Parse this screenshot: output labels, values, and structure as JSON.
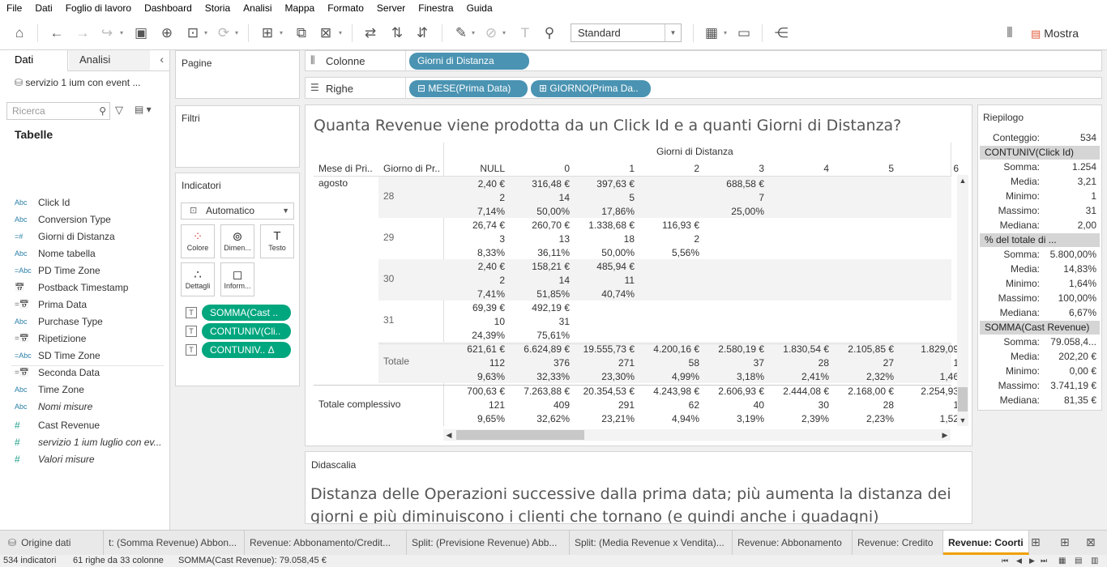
{
  "menu": [
    "File",
    "Dati",
    "Foglio di lavoro",
    "Dashboard",
    "Storia",
    "Analisi",
    "Mappa",
    "Formato",
    "Server",
    "Finestra",
    "Guida"
  ],
  "toolbar": {
    "fit_value": "Standard",
    "show_me": "Mostra"
  },
  "datapane": {
    "tab_data": "Dati",
    "tab_analysis": "Analisi",
    "datasource": "servizio 1 ium con event ...",
    "search_placeholder": "Ricerca",
    "tables_heading": "Tabelle",
    "fields": [
      {
        "icon": "Abc",
        "name": "Click Id",
        "italic": false,
        "measure": false
      },
      {
        "icon": "Abc",
        "name": "Conversion Type",
        "italic": false,
        "measure": false
      },
      {
        "icon": "=#",
        "name": "Giorni di Distanza",
        "italic": false,
        "measure": false
      },
      {
        "icon": "Abc",
        "name": "Nome tabella",
        "italic": false,
        "measure": false
      },
      {
        "icon": "=Abc",
        "name": "PD Time Zone",
        "italic": false,
        "measure": false
      },
      {
        "icon": "cal",
        "name": "Postback Timestamp",
        "italic": false,
        "measure": false
      },
      {
        "icon": "=cal",
        "name": "Prima Data",
        "italic": false,
        "measure": false
      },
      {
        "icon": "Abc",
        "name": "Purchase Type",
        "italic": false,
        "measure": false
      },
      {
        "icon": "=cal",
        "name": "Ripetizione",
        "italic": false,
        "measure": false
      },
      {
        "icon": "=Abc",
        "name": "SD Time Zone",
        "italic": false,
        "measure": false
      },
      {
        "icon": "=cal",
        "name": "Seconda Data",
        "italic": false,
        "measure": false
      },
      {
        "icon": "Abc",
        "name": "Time Zone",
        "italic": false,
        "measure": false
      },
      {
        "icon": "Abc",
        "name": "Nomi misure",
        "italic": true,
        "measure": false
      },
      {
        "icon": "#",
        "name": "Cast Revenue",
        "italic": false,
        "measure": true
      },
      {
        "icon": "#",
        "name": "servizio 1 ium luglio con ev...",
        "italic": true,
        "measure": true
      },
      {
        "icon": "#",
        "name": "Valori misure",
        "italic": true,
        "measure": true
      }
    ]
  },
  "cards": {
    "pages": "Pagine",
    "filters": "Filtri",
    "marks": "Indicatori",
    "mark_type": "Automatico",
    "mark_buttons": [
      "Colore",
      "Dimen...",
      "Testo",
      "Dettagli",
      "Inform..."
    ],
    "mark_pills": [
      "SOMMA(Cast ..",
      "CONTUNIV(Cli..",
      "CONTUNIV.. Δ"
    ]
  },
  "shelves": {
    "columns_label": "Colonne",
    "rows_label": "Righe",
    "columns_pill": "Giorni di Distanza",
    "rows_pills": [
      "⊟ MESE(Prima Data)",
      "⊞ GIORNO(Prima Da.."
    ]
  },
  "viz": {
    "title": "Quanta Revenue viene prodotta da un Click Id e a quanti Giorni di Distanza?",
    "col_group_header": "Giorni di Distanza",
    "row_header_1": "Mese di Pri..",
    "row_header_2": "Giorno di Pr..",
    "columns": [
      "NULL",
      "0",
      "1",
      "2",
      "3",
      "4",
      "5",
      "6"
    ],
    "month": "agosto",
    "rows": [
      {
        "label": "28",
        "cells": [
          [
            "2,40 €",
            "2",
            "7,14%"
          ],
          [
            "316,48 €",
            "14",
            "50,00%"
          ],
          [
            "397,63 €",
            "5",
            "17,86%"
          ],
          [
            "",
            "",
            ""
          ],
          [
            "688,58 €",
            "7",
            "25,00%"
          ],
          [
            "",
            "",
            ""
          ],
          [
            "",
            "",
            ""
          ],
          [
            "",
            "",
            ""
          ]
        ]
      },
      {
        "label": "29",
        "cells": [
          [
            "26,74 €",
            "3",
            "8,33%"
          ],
          [
            "260,70 €",
            "13",
            "36,11%"
          ],
          [
            "1.338,68 €",
            "18",
            "50,00%"
          ],
          [
            "116,93 €",
            "2",
            "5,56%"
          ],
          [
            "",
            "",
            ""
          ],
          [
            "",
            "",
            ""
          ],
          [
            "",
            "",
            ""
          ],
          [
            "",
            "",
            ""
          ]
        ]
      },
      {
        "label": "30",
        "cells": [
          [
            "2,40 €",
            "2",
            "7,41%"
          ],
          [
            "158,21 €",
            "14",
            "51,85%"
          ],
          [
            "485,94 €",
            "11",
            "40,74%"
          ],
          [
            "",
            "",
            ""
          ],
          [
            "",
            "",
            ""
          ],
          [
            "",
            "",
            ""
          ],
          [
            "",
            "",
            ""
          ],
          [
            "",
            "",
            ""
          ]
        ]
      },
      {
        "label": "31",
        "cells": [
          [
            "69,39 €",
            "10",
            "24,39%"
          ],
          [
            "492,19 €",
            "31",
            "75,61%"
          ],
          [
            "",
            "",
            ""
          ],
          [
            "",
            "",
            ""
          ],
          [
            "",
            "",
            ""
          ],
          [
            "",
            "",
            ""
          ],
          [
            "",
            "",
            ""
          ],
          [
            "",
            "",
            ""
          ]
        ]
      },
      {
        "label": "Totale",
        "cells": [
          [
            "621,61 €",
            "112",
            "9,63%"
          ],
          [
            "6.624,89 €",
            "376",
            "32,33%"
          ],
          [
            "19.555,73 €",
            "271",
            "23,30%"
          ],
          [
            "4.200,16 €",
            "58",
            "4,99%"
          ],
          [
            "2.580,19 €",
            "37",
            "3,18%"
          ],
          [
            "1.830,54 €",
            "28",
            "2,41%"
          ],
          [
            "2.105,85 €",
            "27",
            "2,32%"
          ],
          [
            "1.829,09",
            "1",
            "1,46"
          ]
        ]
      }
    ],
    "grand_total_label": "Totale complessivo",
    "grand_total": [
      [
        "700,63 €",
        "121",
        "9,65%"
      ],
      [
        "7.263,88 €",
        "409",
        "32,62%"
      ],
      [
        "20.354,53 €",
        "291",
        "23,21%"
      ],
      [
        "4.243,98 €",
        "62",
        "4,94%"
      ],
      [
        "2.606,93 €",
        "40",
        "3,19%"
      ],
      [
        "2.444,08 €",
        "30",
        "2,39%"
      ],
      [
        "2.168,00 €",
        "28",
        "2,23%"
      ],
      [
        "2.254,93",
        "1",
        "1,52"
      ]
    ]
  },
  "summary": {
    "title": "Riepilogo",
    "count_label": "Conteggio:",
    "count_value": "534",
    "sections": [
      {
        "head": "CONTUNIV(Click Id)",
        "rows": [
          [
            "Somma:",
            "1.254"
          ],
          [
            "Media:",
            "3,21"
          ],
          [
            "Minimo:",
            "1"
          ],
          [
            "Massimo:",
            "31"
          ],
          [
            "Mediana:",
            "2,00"
          ]
        ]
      },
      {
        "head": "% del totale di ...",
        "rows": [
          [
            "Somma:",
            "5.800,00%"
          ],
          [
            "Media:",
            "14,83%"
          ],
          [
            "Minimo:",
            "1,64%"
          ],
          [
            "Massimo:",
            "100,00%"
          ],
          [
            "Mediana:",
            "6,67%"
          ]
        ]
      },
      {
        "head": "SOMMA(Cast Revenue)",
        "rows": [
          [
            "Somma:",
            "79.058,4..."
          ],
          [
            "Media:",
            "202,20 €"
          ],
          [
            "Minimo:",
            "0,00 €"
          ],
          [
            "Massimo:",
            "3.741,19 €"
          ],
          [
            "Mediana:",
            "81,35 €"
          ]
        ]
      }
    ]
  },
  "caption": {
    "title": "Didascalia",
    "text": "Distanza delle Operazioni successive dalla prima data; più aumenta la distanza dei giorni e più diminuiscono i clienti che tornano (e quindi anche i guadagni)"
  },
  "sheet_tabs": [
    "Origine dati",
    "t: (Somma Revenue) Abbon...",
    "Revenue: Abbonamento/Credit...",
    "Split: (Previsione Revenue) Abb...",
    "Split: (Media Revenue x Vendita)...",
    "Revenue: Abbonamento",
    "Revenue: Credito",
    "Revenue: Coorti"
  ],
  "status": {
    "marks": "534 indicatori",
    "rows_cols": "61 righe da 33 colonne",
    "sum": "SOMMA(Cast Revenue): 79.058,45 €"
  }
}
